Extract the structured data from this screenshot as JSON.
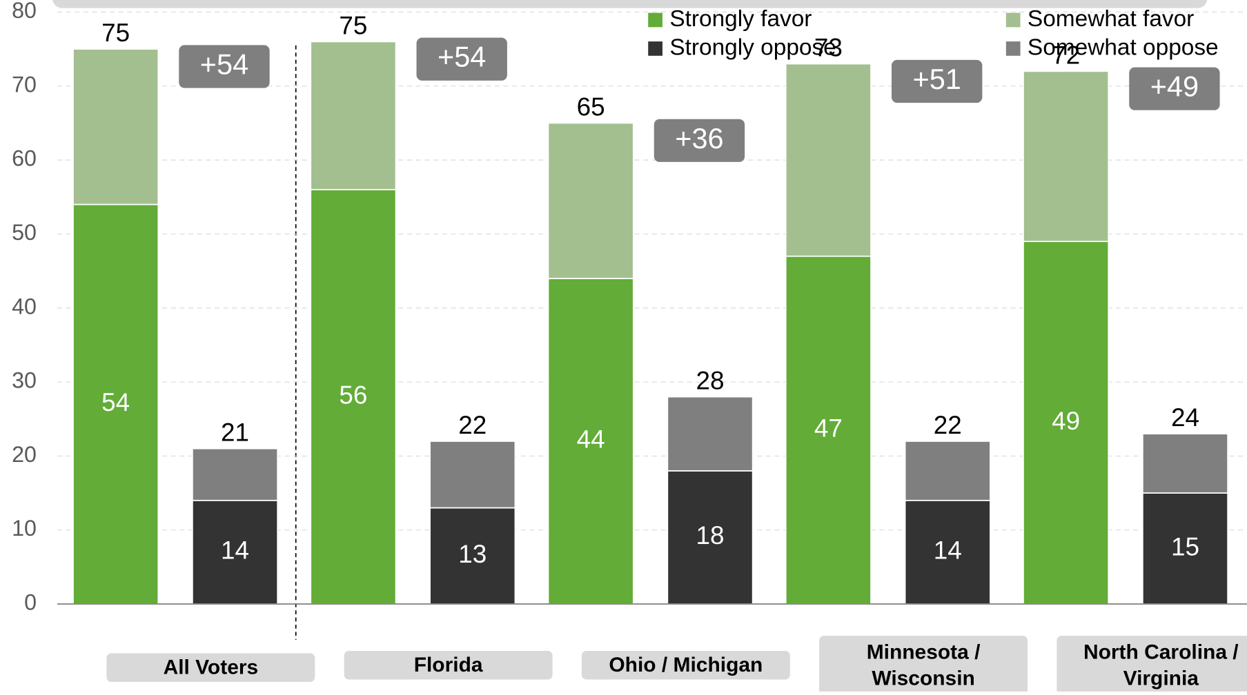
{
  "chart_data": {
    "type": "bar",
    "stacked": true,
    "categories": [
      "All Voters",
      "Florida",
      "Ohio / Michigan",
      "Minnesota / Wisconsin",
      "North Carolina / Virginia"
    ],
    "series": [
      {
        "name": "Strongly favor",
        "color": "#62ac37",
        "group": "favor",
        "values": [
          54,
          56,
          44,
          47,
          49
        ]
      },
      {
        "name": "Somewhat favor",
        "color": "#a3bf8f",
        "group": "favor",
        "values": [
          21,
          20,
          21,
          26,
          23
        ]
      },
      {
        "name": "Strongly oppose",
        "color": "#333333",
        "group": "oppose",
        "values": [
          14,
          13,
          18,
          14,
          15
        ]
      },
      {
        "name": "Somewhat oppose",
        "color": "#7f7f7f",
        "group": "oppose",
        "values": [
          7,
          9,
          10,
          8,
          8
        ]
      }
    ],
    "favor_totals": [
      75,
      75,
      65,
      73,
      72
    ],
    "oppose_totals": [
      21,
      22,
      28,
      22,
      24
    ],
    "net": {
      "values": [
        54,
        54,
        36,
        51,
        49
      ],
      "value_labels": [
        "+54",
        "+54",
        "+36",
        "+51",
        "+49"
      ]
    },
    "ylim": [
      0,
      80
    ],
    "yticks": [
      0,
      10,
      20,
      30,
      40,
      50,
      60,
      70,
      80
    ],
    "grid": true
  }
}
